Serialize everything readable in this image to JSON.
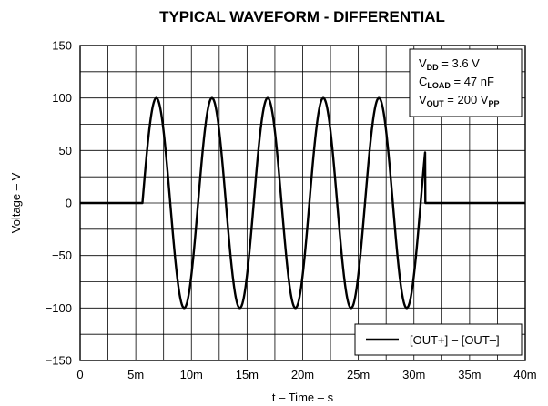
{
  "chart_data": {
    "type": "line",
    "title": "TYPICAL WAVEFORM - DIFFERENTIAL",
    "xlabel": "t – Time – s",
    "ylabel": "Voltage – V",
    "xlim": [
      0,
      0.04
    ],
    "ylim": [
      -150,
      150
    ],
    "x_ticks": [
      0,
      0.005,
      0.01,
      0.015,
      0.02,
      0.025,
      0.03,
      0.035,
      0.04
    ],
    "x_tick_labels": [
      "0",
      "5m",
      "10m",
      "15m",
      "20m",
      "25m",
      "30m",
      "35m",
      "40m"
    ],
    "y_ticks": [
      -150,
      -100,
      -50,
      0,
      50,
      100,
      150
    ],
    "y_tick_labels": [
      "−150",
      "−100",
      "−50",
      "0",
      "50",
      "100",
      "150"
    ],
    "grid": true,
    "minor_grid_x_step": 0.0025,
    "minor_grid_y_step": 25,
    "legend_position": "bottom-right",
    "annotation_position": "top-right",
    "annotations": [
      {
        "base": "V",
        "sub": "DD",
        "rest": " = 3.6 V"
      },
      {
        "base": "C",
        "sub": "LOAD",
        "rest": " = 47 nF"
      },
      {
        "base": "V",
        "sub": "OUT",
        "rest": " = 200 V",
        "sub2": "PP"
      }
    ],
    "series": [
      {
        "name": "[OUT+] – [OUT–]",
        "color": "#000000",
        "waveform": {
          "kind": "sine_burst",
          "amplitude": 100,
          "frequency_hz": 200,
          "burst_start_s": 0.0056,
          "burst_end_s": 0.031,
          "baseline": 0
        }
      }
    ]
  }
}
